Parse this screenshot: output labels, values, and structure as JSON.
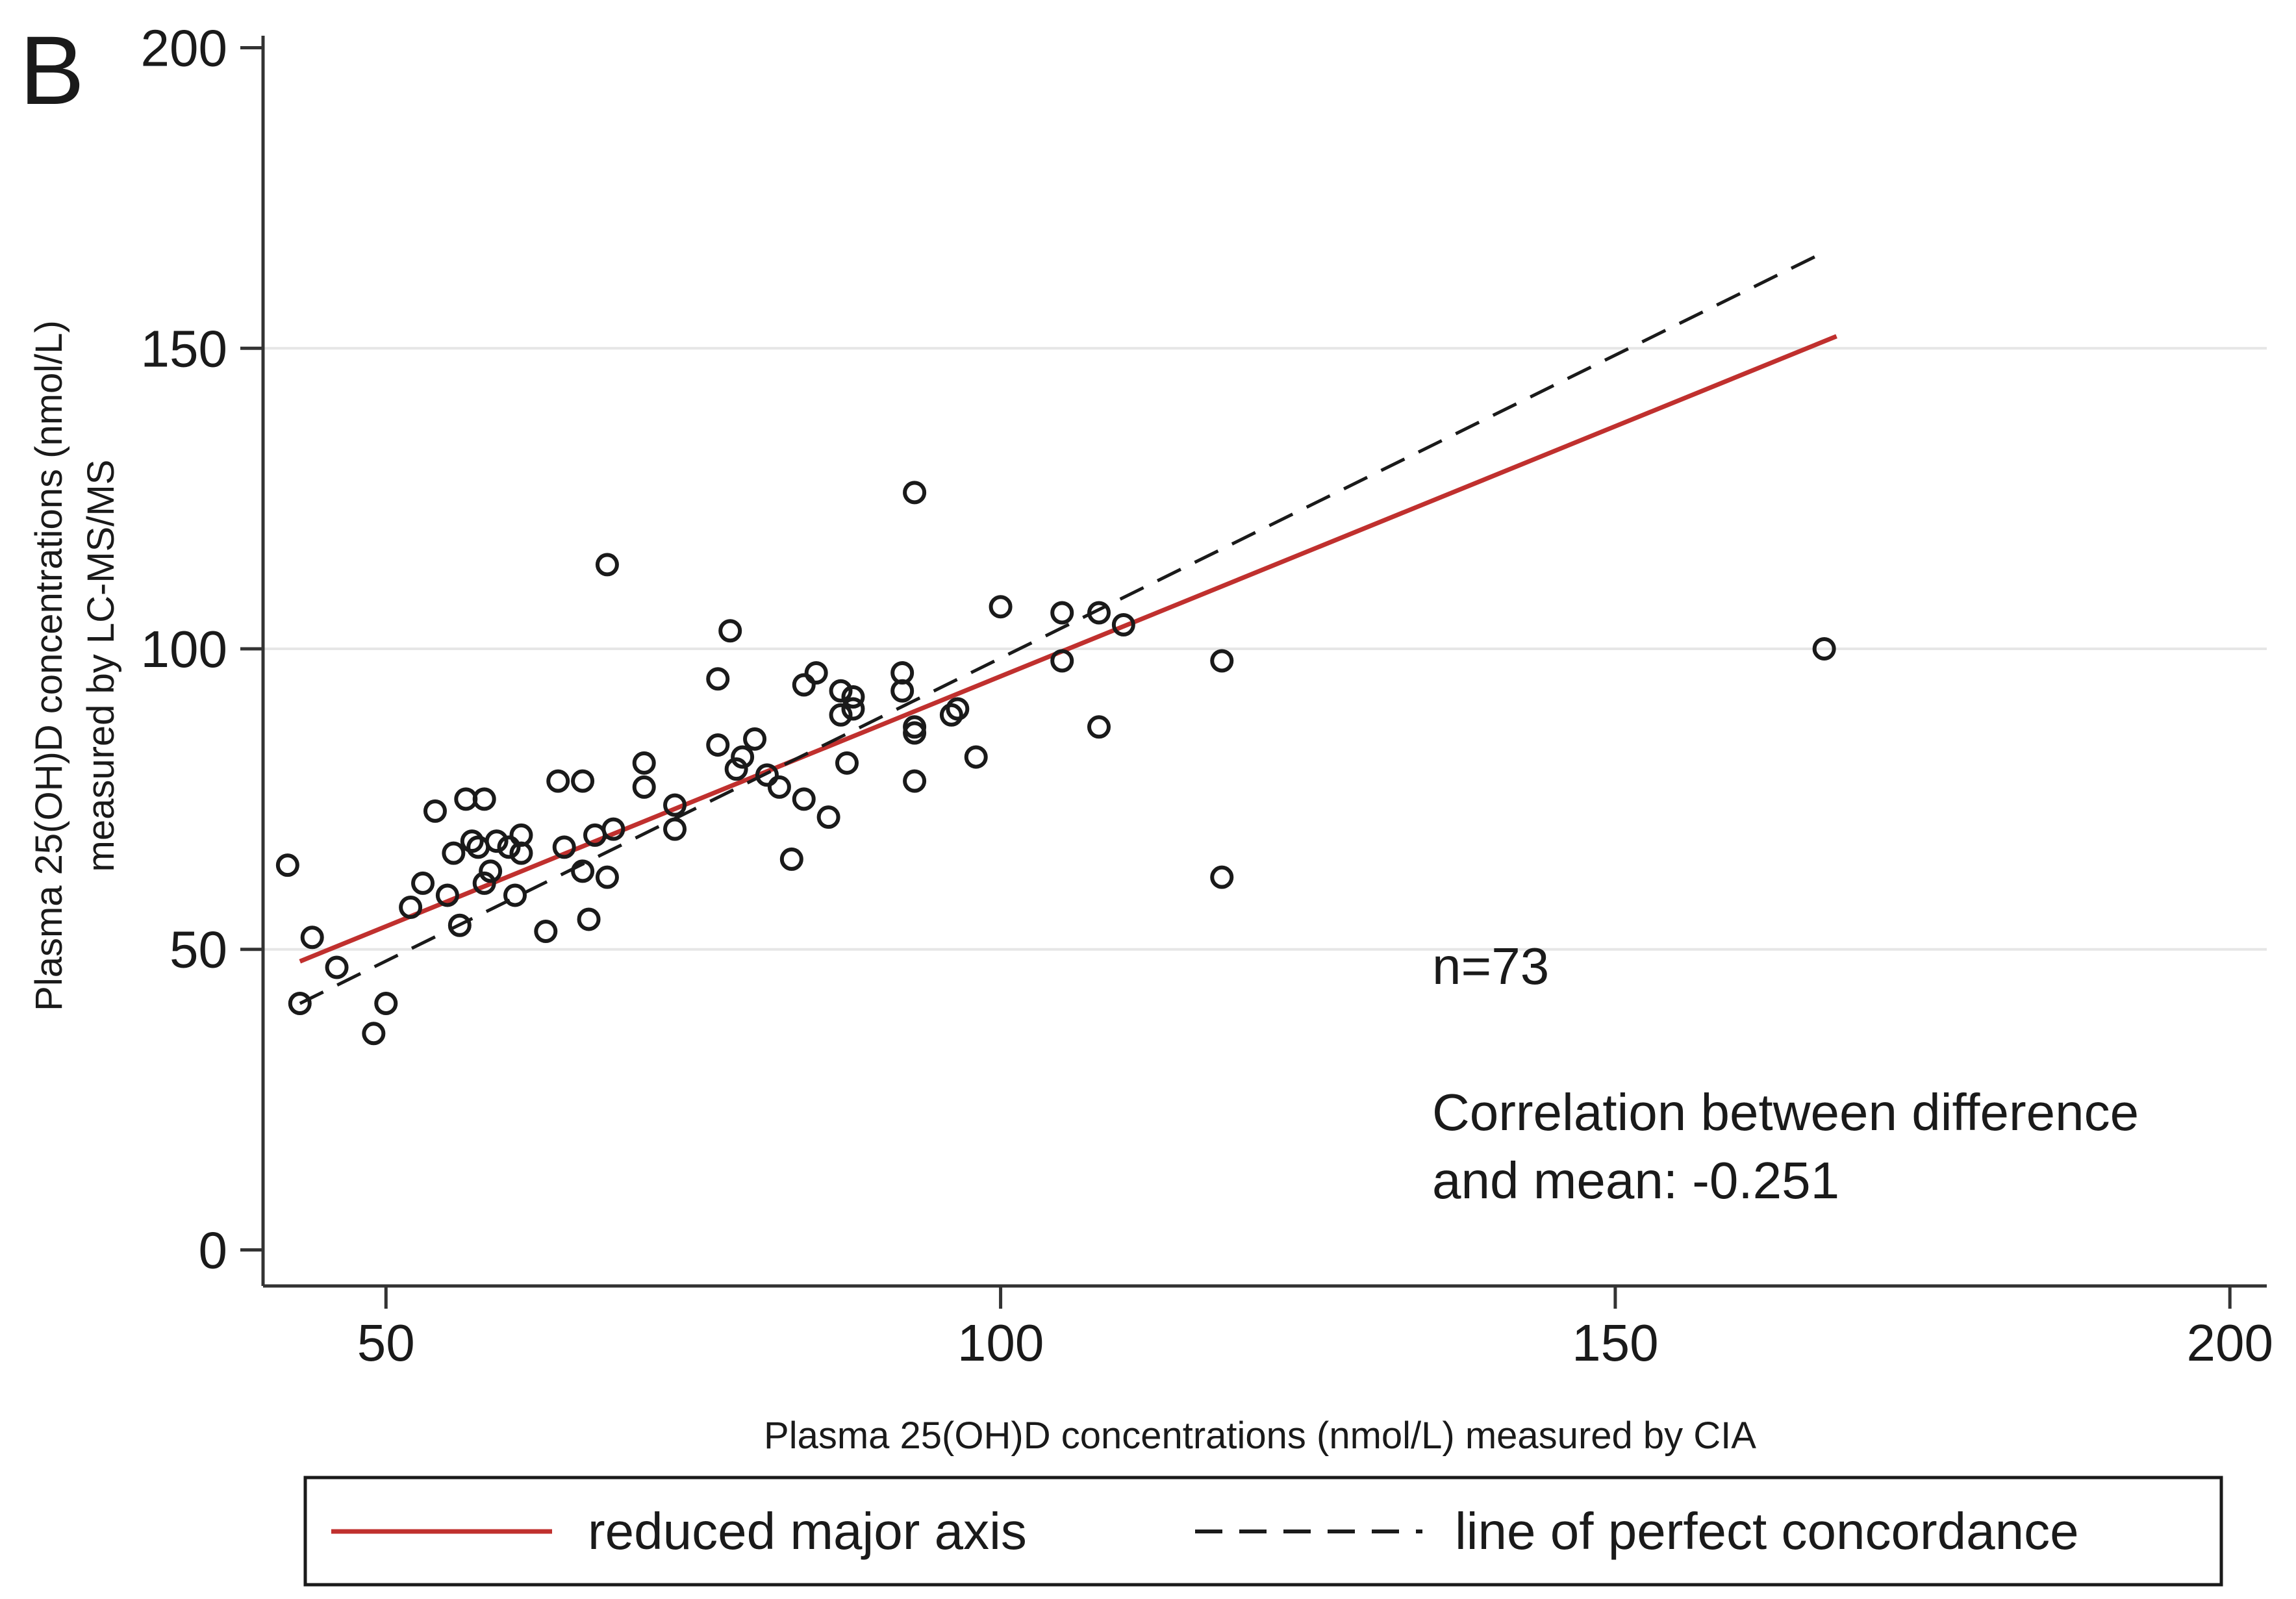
{
  "chart_data": {
    "type": "scatter",
    "panel_label": "B",
    "xlabel": "Plasma 25(OH)D concentrations (nmol/L) measured by CIA",
    "ylabel_lines": [
      "Plasma 25(OH)D concentrations (nmol/L)",
      "measured by LC-MS/MS"
    ],
    "xlim": [
      40,
      203
    ],
    "ylim": [
      -6,
      202
    ],
    "xticks": [
      50,
      100,
      150,
      200
    ],
    "yticks": [
      0,
      50,
      100,
      150,
      200
    ],
    "grid": {
      "horizontal": true,
      "vertical": false
    },
    "annotations": [
      "n=73",
      "Correlation between difference",
      "and mean: -0.251"
    ],
    "series": [
      {
        "name": "reduced major axis",
        "kind": "line",
        "color": "#c0302e",
        "style": "solid",
        "x": [
          43,
          168
        ],
        "y": [
          48,
          152
        ]
      },
      {
        "name": "line of perfect concordance",
        "kind": "line",
        "color": "#1a1a1a",
        "style": "dashed",
        "x": [
          43,
          167
        ],
        "y": [
          41,
          166
        ]
      },
      {
        "name": "observations",
        "kind": "points",
        "color": "#1a1a1a",
        "x": [
          42,
          44,
          43,
          46,
          49,
          50,
          52,
          53,
          54,
          55,
          55.5,
          56,
          56.5,
          57,
          57.5,
          58,
          58,
          58.5,
          59,
          60,
          60.5,
          61,
          61,
          63,
          64,
          64.5,
          66,
          66,
          66.5,
          67,
          68,
          68.5,
          71,
          71,
          73.5,
          73.5,
          77,
          77,
          78,
          78.5,
          79,
          80,
          81,
          82,
          83,
          84,
          84,
          85,
          86,
          87,
          87,
          87.5,
          88,
          88,
          92,
          92,
          93,
          93,
          93,
          96,
          96.5,
          98,
          100,
          105,
          105,
          108,
          108,
          110,
          118,
          118,
          93,
          68,
          167
        ],
        "y": [
          64,
          52,
          41,
          47,
          36,
          41,
          57,
          61,
          73,
          59,
          66,
          54,
          75,
          68,
          67,
          75,
          61,
          63,
          68,
          67,
          59,
          66,
          69,
          53,
          78,
          67,
          78,
          63,
          55,
          69,
          62,
          70,
          81,
          77,
          70,
          74,
          95,
          84,
          103,
          80,
          82,
          85,
          79,
          77,
          65,
          75,
          94,
          96,
          72,
          93,
          89,
          81,
          90,
          92,
          96,
          93,
          86,
          87,
          78,
          89,
          90,
          82,
          107,
          106,
          98,
          106,
          87,
          104,
          98,
          62,
          126,
          114,
          100
        ]
      }
    ]
  }
}
